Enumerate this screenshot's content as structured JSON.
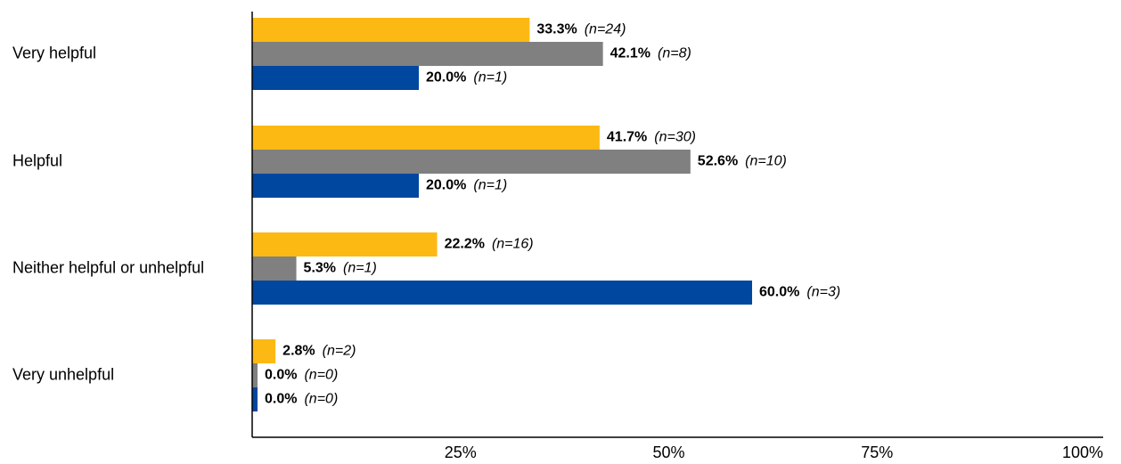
{
  "chart_data": {
    "type": "bar",
    "orientation": "horizontal",
    "categories": [
      "Very helpful",
      "Helpful",
      "Neither helpful or unhelpful",
      "Very unhelpful"
    ],
    "series": [
      {
        "color": "#FDB913",
        "values": [
          33.3,
          41.7,
          22.2,
          2.8
        ],
        "value_labels": [
          "33.3%",
          "41.7%",
          "22.2%",
          "2.8%"
        ],
        "n_labels": [
          "(n=24)",
          "(n=30)",
          "(n=16)",
          "(n=2)"
        ]
      },
      {
        "color": "#808080",
        "values": [
          42.1,
          52.6,
          5.3,
          0.0
        ],
        "value_labels": [
          "42.1%",
          "52.6%",
          "5.3%",
          "0.0%"
        ],
        "n_labels": [
          "(n=8)",
          "(n=10)",
          "(n=1)",
          "(n=0)"
        ]
      },
      {
        "color": "#0047A0",
        "values": [
          20.0,
          20.0,
          60.0,
          0.0
        ],
        "value_labels": [
          "20.0%",
          "20.0%",
          "60.0%",
          "0.0%"
        ],
        "n_labels": [
          "(n=1)",
          "(n=1)",
          "(n=3)",
          "(n=0)"
        ]
      }
    ],
    "xlim": [
      0,
      100
    ],
    "xticks": [
      25,
      50,
      75,
      100
    ],
    "xtick_labels": [
      "25%",
      "50%",
      "75%",
      "100%"
    ],
    "title": "",
    "xlabel": "",
    "ylabel": "",
    "grid": false,
    "legend": false
  }
}
